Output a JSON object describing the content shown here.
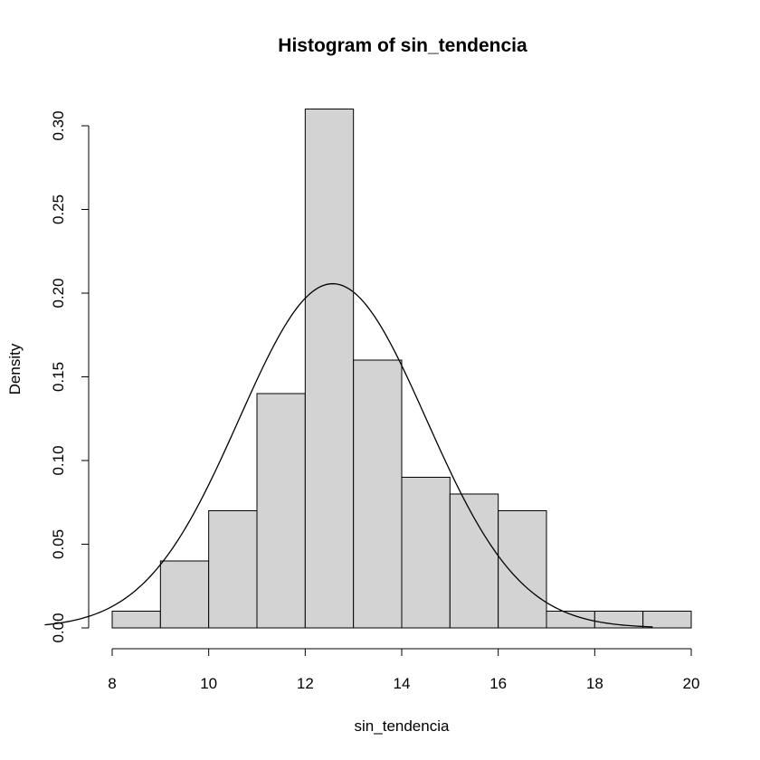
{
  "chart_data": {
    "type": "bar",
    "title": "Histogram of sin_tendencia",
    "xlabel": "sin_tendencia",
    "ylabel": "Density",
    "xlim": [
      8,
      20
    ],
    "ylim": [
      0,
      0.3
    ],
    "x_ticks": [
      "8",
      "10",
      "12",
      "14",
      "16",
      "18",
      "20"
    ],
    "y_ticks": [
      "0.00",
      "0.05",
      "0.10",
      "0.15",
      "0.20",
      "0.25",
      "0.30"
    ],
    "bin_edges": [
      8,
      9,
      10,
      11,
      12,
      13,
      14,
      15,
      16,
      17,
      18,
      19,
      20
    ],
    "density": [
      0.01,
      0.04,
      0.07,
      0.14,
      0.31,
      0.16,
      0.09,
      0.08,
      0.07,
      0.01,
      0.01,
      0.01
    ],
    "bar_fill": "#d3d3d3",
    "bar_stroke": "#000000",
    "overlay_curve": {
      "type": "normal-density",
      "mean": 12.57,
      "sd": 1.94,
      "x_range": [
        6.6,
        19.2
      ]
    },
    "grid": false
  }
}
